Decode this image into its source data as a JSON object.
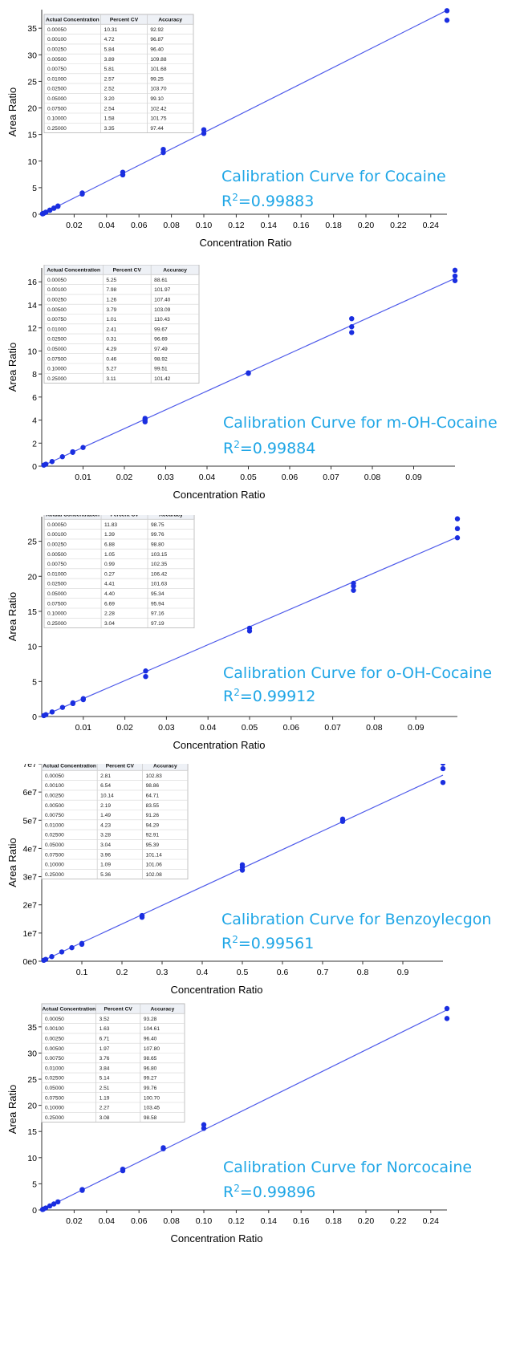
{
  "chart_data": [
    {
      "type": "scatter",
      "title": "Calibration Curve for Cocaine",
      "r2_prefix": "R",
      "r2_sup": "2",
      "r2_value": "=0.99883",
      "xlabel": "Concentration Ratio",
      "ylabel": "Area Ratio",
      "xlim": [
        0,
        0.25
      ],
      "ylim": [
        0,
        38.5
      ],
      "x_ticks": [
        "0.02",
        "0.04",
        "0.06",
        "0.08",
        "0.10",
        "0.12",
        "0.14",
        "0.16",
        "0.18",
        "0.20",
        "0.22",
        "0.24"
      ],
      "x_tick_values": [
        0.02,
        0.04,
        0.06,
        0.08,
        0.1,
        0.12,
        0.14,
        0.16,
        0.18,
        0.2,
        0.22,
        0.24
      ],
      "y_ticks": [
        "0",
        "5",
        "10",
        "15",
        "20",
        "25",
        "30",
        "35"
      ],
      "y_tick_values": [
        0,
        5,
        10,
        15,
        20,
        25,
        30,
        35
      ],
      "fit": {
        "slope": 153.5,
        "intercept": 0
      },
      "series": [
        {
          "points": [
            [
              0.0005,
              0.09
            ],
            [
              0.0005,
              0.07
            ],
            [
              0.001,
              0.16
            ],
            [
              0.001,
              0.14
            ],
            [
              0.0025,
              0.38
            ],
            [
              0.0025,
              0.36
            ],
            [
              0.005,
              0.78
            ],
            [
              0.005,
              0.74
            ],
            [
              0.0075,
              1.16
            ],
            [
              0.0075,
              1.12
            ],
            [
              0.01,
              1.55
            ],
            [
              0.01,
              1.48
            ],
            [
              0.025,
              4.0
            ],
            [
              0.025,
              3.8
            ],
            [
              0.05,
              7.9
            ],
            [
              0.05,
              7.4
            ],
            [
              0.075,
              12.2
            ],
            [
              0.075,
              11.6
            ],
            [
              0.1,
              15.9
            ],
            [
              0.1,
              15.2
            ],
            [
              0.25,
              38.3
            ],
            [
              0.25,
              36.5
            ]
          ]
        }
      ],
      "table": {
        "headers": [
          "Actual Concentration",
          "Percent CV",
          "Accuracy"
        ],
        "rows": [
          [
            "0.00050",
            "10.31",
            "92.92"
          ],
          [
            "0.00100",
            "4.72",
            "96.87"
          ],
          [
            "0.00250",
            "5.84",
            "96.40"
          ],
          [
            "0.00500",
            "3.89",
            "109.88"
          ],
          [
            "0.00750",
            "5.81",
            "101.68"
          ],
          [
            "0.01000",
            "2.57",
            "99.25"
          ],
          [
            "0.02500",
            "2.52",
            "103.70"
          ],
          [
            "0.05000",
            "3.20",
            "99.10"
          ],
          [
            "0.07500",
            "2.54",
            "102.42"
          ],
          [
            "0.10000",
            "1.58",
            "101.75"
          ],
          [
            "0.25000",
            "3.35",
            "97.44"
          ]
        ]
      }
    },
    {
      "type": "scatter",
      "title": "Calibration Curve for m-OH-Cocaine",
      "r2_prefix": "R",
      "r2_sup": "2",
      "r2_value": "=0.99884",
      "xlabel": "Concentration Ratio",
      "ylabel": "Area Ratio",
      "xlim": [
        0,
        0.1
      ],
      "ylim": [
        0,
        17.2
      ],
      "x_ticks": [
        "0.01",
        "0.02",
        "0.03",
        "0.04",
        "0.05",
        "0.06",
        "0.07",
        "0.08",
        "0.09"
      ],
      "x_tick_values": [
        0.01,
        0.02,
        0.03,
        0.04,
        0.05,
        0.06,
        0.07,
        0.08,
        0.09
      ],
      "y_ticks": [
        "0",
        "2",
        "4",
        "6",
        "8",
        "10",
        "12",
        "14",
        "16"
      ],
      "y_tick_values": [
        0,
        2,
        4,
        6,
        8,
        10,
        12,
        14,
        16
      ],
      "fit": {
        "slope": 163.0,
        "intercept": 0
      },
      "series": [
        {
          "points": [
            [
              0.0005,
              0.09
            ],
            [
              0.001,
              0.17
            ],
            [
              0.0025,
              0.4
            ],
            [
              0.005,
              0.82
            ],
            [
              0.0075,
              1.2
            ],
            [
              0.0075,
              1.25
            ],
            [
              0.01,
              1.62
            ],
            [
              0.025,
              4.15
            ],
            [
              0.025,
              4.0
            ],
            [
              0.025,
              3.85
            ],
            [
              0.05,
              8.1
            ],
            [
              0.05,
              8.05
            ],
            [
              0.075,
              12.8
            ],
            [
              0.075,
              12.1
            ],
            [
              0.075,
              11.6
            ],
            [
              0.1,
              17.0
            ],
            [
              0.1,
              16.5
            ],
            [
              0.1,
              16.1
            ]
          ]
        }
      ],
      "table": {
        "headers": [
          "Actual Concentration",
          "Percent CV",
          "Accuracy"
        ],
        "rows": [
          [
            "0.00050",
            "5.25",
            "88.61"
          ],
          [
            "0.00100",
            "7.98",
            "101.97"
          ],
          [
            "0.00250",
            "1.26",
            "107.40"
          ],
          [
            "0.00500",
            "3.79",
            "103.09"
          ],
          [
            "0.00750",
            "1.01",
            "110.43"
          ],
          [
            "0.01000",
            "2.41",
            "99.67"
          ],
          [
            "0.02500",
            "0.31",
            "96.69"
          ],
          [
            "0.05000",
            "4.29",
            "97.49"
          ],
          [
            "0.07500",
            "0.46",
            "98.92"
          ],
          [
            "0.10000",
            "5.27",
            "99.51"
          ],
          [
            "0.25000",
            "3.11",
            "101.42"
          ]
        ]
      }
    },
    {
      "type": "scatter",
      "title": "Calibration Curve for o-OH-Cocaine",
      "r2_prefix": "R",
      "r2_sup": "2",
      "r2_value": "=0.99912",
      "xlabel": "Concentration Ratio",
      "ylabel": "Area Ratio",
      "xlim": [
        0,
        0.1
      ],
      "ylim": [
        0,
        28.5
      ],
      "x_ticks": [
        "0.01",
        "0.02",
        "0.03",
        "0.04",
        "0.05",
        "0.06",
        "0.07",
        "0.08",
        "0.09"
      ],
      "x_tick_values": [
        0.01,
        0.02,
        0.03,
        0.04,
        0.05,
        0.06,
        0.07,
        0.08,
        0.09
      ],
      "y_ticks": [
        "0",
        "5",
        "10",
        "15",
        "20",
        "25"
      ],
      "y_tick_values": [
        0,
        5,
        10,
        15,
        20,
        25
      ],
      "fit": {
        "slope": 256.0,
        "intercept": 0
      },
      "series": [
        {
          "points": [
            [
              0.0005,
              0.13
            ],
            [
              0.001,
              0.26
            ],
            [
              0.0025,
              0.65
            ],
            [
              0.005,
              1.3
            ],
            [
              0.0075,
              1.95
            ],
            [
              0.0075,
              1.85
            ],
            [
              0.01,
              2.55
            ],
            [
              0.01,
              2.4
            ],
            [
              0.025,
              6.5
            ],
            [
              0.025,
              5.7
            ],
            [
              0.05,
              12.6
            ],
            [
              0.05,
              12.2
            ],
            [
              0.075,
              19.0
            ],
            [
              0.075,
              18.6
            ],
            [
              0.075,
              18.0
            ],
            [
              0.1,
              28.2
            ],
            [
              0.1,
              26.8
            ],
            [
              0.1,
              25.5
            ]
          ]
        }
      ],
      "table": {
        "headers": [
          "Actual Concentration",
          "Percent CV",
          "Accuracy"
        ],
        "rows": [
          [
            "0.00050",
            "11.83",
            "98.75"
          ],
          [
            "0.00100",
            "1.39",
            "99.76"
          ],
          [
            "0.00250",
            "6.88",
            "98.80"
          ],
          [
            "0.00500",
            "1.05",
            "103.15"
          ],
          [
            "0.00750",
            "0.99",
            "102.35"
          ],
          [
            "0.01000",
            "0.27",
            "106.42"
          ],
          [
            "0.02500",
            "4.41",
            "101.63"
          ],
          [
            "0.05000",
            "4.40",
            "95.34"
          ],
          [
            "0.07500",
            "6.69",
            "95.94"
          ],
          [
            "0.10000",
            "2.28",
            "97.16"
          ],
          [
            "0.25000",
            "3.04",
            "97.19"
          ]
        ]
      }
    },
    {
      "type": "scatter",
      "title": "Calibration Curve for Benzoylecgon",
      "r2_prefix": "R",
      "r2_sup": "2",
      "r2_value": "=0.99561",
      "xlabel": "Concentration Ratio",
      "ylabel": "Area Ratio",
      "xlim": [
        0,
        1.0
      ],
      "ylim": [
        0,
        70000000
      ],
      "x_ticks": [
        "0.1",
        "0.2",
        "0.3",
        "0.4",
        "0.5",
        "0.6",
        "0.7",
        "0.8",
        "0.9"
      ],
      "x_tick_values": [
        0.1,
        0.2,
        0.3,
        0.4,
        0.5,
        0.6,
        0.7,
        0.8,
        0.9
      ],
      "y_ticks": [
        "0e0",
        "1e7",
        "2e7",
        "3e7",
        "4e7",
        "5e7",
        "6e7",
        "7e7"
      ],
      "y_tick_values": [
        0,
        10000000,
        20000000,
        30000000,
        40000000,
        50000000,
        60000000,
        70000000
      ],
      "fit": {
        "slope": 66000000,
        "intercept": 0
      },
      "series": [
        {
          "points": [
            [
              0.005,
              330000
            ],
            [
              0.01,
              660000
            ],
            [
              0.025,
              1650000
            ],
            [
              0.05,
              3300000
            ],
            [
              0.075,
              4800000
            ],
            [
              0.1,
              6300000
            ],
            [
              0.1,
              6000000
            ],
            [
              0.25,
              16200000
            ],
            [
              0.25,
              15600000
            ],
            [
              0.5,
              34200000
            ],
            [
              0.5,
              33300000
            ],
            [
              0.5,
              32300000
            ],
            [
              0.75,
              50400000
            ],
            [
              0.75,
              49600000
            ],
            [
              1.0,
              70200000
            ],
            [
              1.0,
              68300000
            ],
            [
              1.0,
              63400000
            ]
          ]
        }
      ],
      "table": {
        "headers": [
          "Actual Concentration",
          "Percent CV",
          "Accuracy"
        ],
        "rows": [
          [
            "0.00050",
            "2.81",
            "102.83"
          ],
          [
            "0.00100",
            "6.54",
            "98.86"
          ],
          [
            "0.00250",
            "10.14",
            "64.71"
          ],
          [
            "0.00500",
            "2.19",
            "83.55"
          ],
          [
            "0.00750",
            "1.49",
            "91.26"
          ],
          [
            "0.01000",
            "4.23",
            "94.29"
          ],
          [
            "0.02500",
            "3.28",
            "92.91"
          ],
          [
            "0.05000",
            "3.04",
            "95.39"
          ],
          [
            "0.07500",
            "3.96",
            "101.14"
          ],
          [
            "0.10000",
            "1.09",
            "101.06"
          ],
          [
            "0.25000",
            "5.36",
            "102.08"
          ]
        ]
      }
    },
    {
      "type": "scatter",
      "title": "Calibration Curve for Norcocaine",
      "r2_prefix": "R",
      "r2_sup": "2",
      "r2_value": "=0.99896",
      "xlabel": "Concentration Ratio",
      "ylabel": "Area Ratio",
      "xlim": [
        0,
        0.25
      ],
      "ylim": [
        0,
        38.5
      ],
      "x_ticks": [
        "0.02",
        "0.04",
        "0.06",
        "0.08",
        "0.10",
        "0.12",
        "0.14",
        "0.16",
        "0.18",
        "0.20",
        "0.22",
        "0.24"
      ],
      "x_tick_values": [
        0.02,
        0.04,
        0.06,
        0.08,
        0.1,
        0.12,
        0.14,
        0.16,
        0.18,
        0.2,
        0.22,
        0.24
      ],
      "y_ticks": [
        "0",
        "5",
        "10",
        "15",
        "20",
        "25",
        "30",
        "35"
      ],
      "y_tick_values": [
        0,
        5,
        10,
        15,
        20,
        25,
        30,
        35
      ],
      "fit": {
        "slope": 153.0,
        "intercept": 0
      },
      "series": [
        {
          "points": [
            [
              0.0005,
              0.08
            ],
            [
              0.001,
              0.16
            ],
            [
              0.0025,
              0.38
            ],
            [
              0.005,
              0.77
            ],
            [
              0.0075,
              1.15
            ],
            [
              0.01,
              1.55
            ],
            [
              0.025,
              3.9
            ],
            [
              0.025,
              3.75
            ],
            [
              0.05,
              7.8
            ],
            [
              0.05,
              7.5
            ],
            [
              0.075,
              11.9
            ],
            [
              0.075,
              11.7
            ],
            [
              0.1,
              16.3
            ],
            [
              0.1,
              15.6
            ],
            [
              0.25,
              38.5
            ],
            [
              0.25,
              36.6
            ]
          ]
        }
      ],
      "table": {
        "headers": [
          "Actual Concentration",
          "Percent CV",
          "Accuracy"
        ],
        "rows": [
          [
            "0.00050",
            "3.52",
            "93.28"
          ],
          [
            "0.00100",
            "1.63",
            "104.61"
          ],
          [
            "0.00250",
            "6.71",
            "96.40"
          ],
          [
            "0.00500",
            "1.97",
            "107.80"
          ],
          [
            "0.00750",
            "3.76",
            "98.65"
          ],
          [
            "0.01000",
            "3.84",
            "96.80"
          ],
          [
            "0.02500",
            "5.14",
            "99.27"
          ],
          [
            "0.05000",
            "2.51",
            "99.76"
          ],
          [
            "0.07500",
            "1.19",
            "100.70"
          ],
          [
            "0.10000",
            "2.27",
            "103.45"
          ],
          [
            "0.25000",
            "3.08",
            "98.58"
          ]
        ]
      }
    }
  ]
}
